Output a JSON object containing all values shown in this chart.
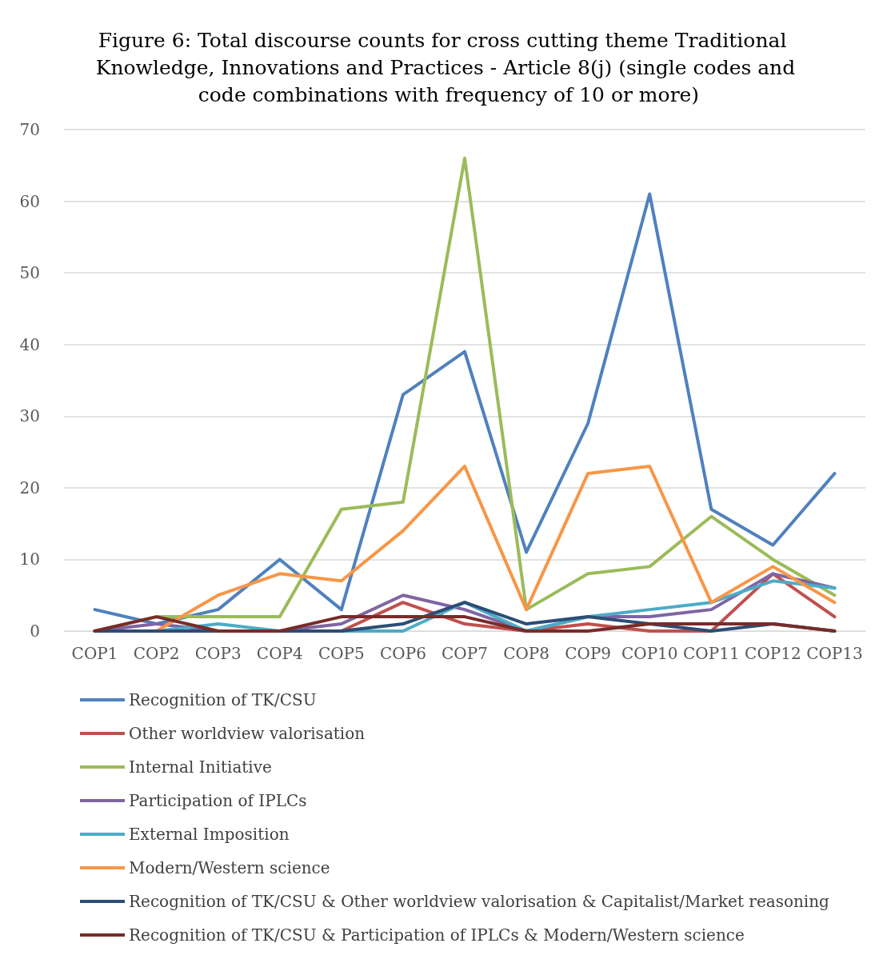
{
  "chart_data": {
    "type": "line",
    "title": "Figure 6: Total discourse counts for cross cutting theme Traditional Knowledge, Innovations and Practices - Article 8(j) (single codes and code combinations with frequency of 10 or more)",
    "categories": [
      "COP1",
      "COP2",
      "COP3",
      "COP4",
      "COP5",
      "COP6",
      "COP7",
      "COP8",
      "COP9",
      "COP10",
      "COP11",
      "COP12",
      "COP13"
    ],
    "series": [
      {
        "name": "Recognition of TK/CSU",
        "color": "#4f81bd",
        "values": [
          3,
          1,
          3,
          10,
          3,
          33,
          39,
          11,
          29,
          61,
          17,
          12,
          22
        ]
      },
      {
        "name": "Other worldview valorisation",
        "color": "#c0504d",
        "values": [
          0,
          0,
          0,
          0,
          0,
          4,
          1,
          0,
          1,
          0,
          0,
          8,
          2
        ]
      },
      {
        "name": "Internal Initiative",
        "color": "#9bbb59",
        "values": [
          0,
          2,
          2,
          2,
          17,
          18,
          66,
          3,
          8,
          9,
          16,
          10,
          5
        ]
      },
      {
        "name": "Participation of IPLCs",
        "color": "#8064a2",
        "values": [
          0,
          1,
          0,
          0,
          1,
          5,
          3,
          0,
          2,
          2,
          3,
          8,
          6
        ]
      },
      {
        "name": "External Imposition",
        "color": "#4bacc6",
        "values": [
          0,
          0,
          1,
          0,
          0,
          0,
          4,
          0,
          2,
          3,
          4,
          7,
          6
        ]
      },
      {
        "name": "Modern/Western science",
        "color": "#f79646",
        "values": [
          0,
          0,
          5,
          8,
          7,
          14,
          23,
          3,
          22,
          23,
          4,
          9,
          4
        ]
      },
      {
        "name": "Recognition of TK/CSU & Other worldview valorisation & Capitalist/Market reasoning",
        "color": "#2c4d75",
        "values": [
          0,
          0,
          0,
          0,
          0,
          1,
          4,
          1,
          2,
          1,
          0,
          1,
          0
        ]
      },
      {
        "name": "Recognition of TK/CSU & Participation of IPLCs & Modern/Western science",
        "color": "#772c2a",
        "values": [
          0,
          2,
          0,
          0,
          2,
          2,
          2,
          0,
          0,
          1,
          1,
          1,
          0
        ]
      }
    ],
    "ylim": [
      0,
      70
    ],
    "yticks": [
      0,
      10,
      20,
      30,
      40,
      50,
      60,
      70
    ],
    "grid": "y",
    "legend": "bottom",
    "marker": "none",
    "line_style": "solid"
  }
}
